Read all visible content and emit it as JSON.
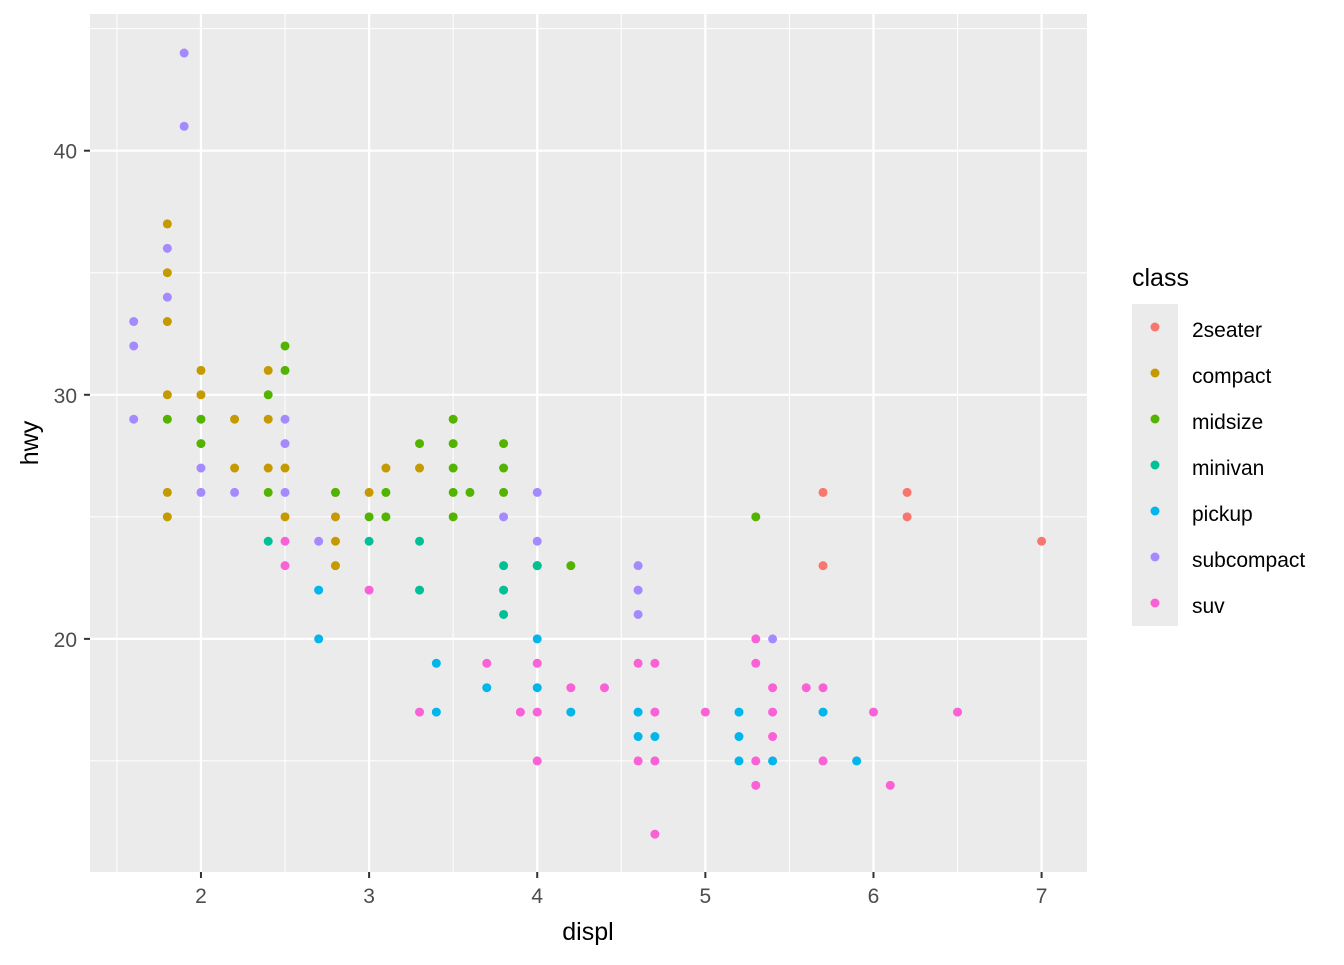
{
  "chart_data": {
    "type": "scatter",
    "xlabel": "displ",
    "ylabel": "hwy",
    "xlim": [
      1.34,
      7.27
    ],
    "ylim": [
      10.45,
      45.6
    ],
    "xticks": [
      2,
      3,
      4,
      5,
      6,
      7
    ],
    "yticks": [
      20,
      30,
      40
    ],
    "grid": true,
    "legend": {
      "title": "class",
      "placement": "right"
    },
    "series": [
      {
        "name": "2seater",
        "color": "#F8766D",
        "points": [
          [
            5.7,
            26
          ],
          [
            6.2,
            26
          ],
          [
            6.2,
            25
          ],
          [
            5.7,
            23
          ],
          [
            7.0,
            24
          ]
        ]
      },
      {
        "name": "compact",
        "color": "#C49A00",
        "points": [
          [
            1.8,
            37
          ],
          [
            1.8,
            35
          ],
          [
            1.8,
            33
          ],
          [
            1.8,
            30
          ],
          [
            1.8,
            26
          ],
          [
            1.8,
            25
          ],
          [
            2.0,
            31
          ],
          [
            2.0,
            30
          ],
          [
            2.2,
            29
          ],
          [
            2.2,
            27
          ],
          [
            2.4,
            31
          ],
          [
            2.4,
            29
          ],
          [
            2.4,
            27
          ],
          [
            2.5,
            27
          ],
          [
            2.5,
            25
          ],
          [
            2.8,
            26
          ],
          [
            2.8,
            25
          ],
          [
            2.8,
            24
          ],
          [
            2.8,
            23
          ],
          [
            3.0,
            26
          ],
          [
            3.1,
            27
          ],
          [
            3.3,
            27
          ]
        ]
      },
      {
        "name": "midsize",
        "color": "#53B400",
        "points": [
          [
            1.8,
            29
          ],
          [
            2.0,
            29
          ],
          [
            2.0,
            28
          ],
          [
            2.4,
            30
          ],
          [
            2.4,
            26
          ],
          [
            2.5,
            32
          ],
          [
            2.5,
            31
          ],
          [
            2.8,
            26
          ],
          [
            3.0,
            25
          ],
          [
            3.1,
            26
          ],
          [
            3.1,
            25
          ],
          [
            3.3,
            28
          ],
          [
            3.5,
            29
          ],
          [
            3.5,
            28
          ],
          [
            3.5,
            27
          ],
          [
            3.5,
            26
          ],
          [
            3.5,
            25
          ],
          [
            3.6,
            26
          ],
          [
            3.8,
            28
          ],
          [
            3.8,
            27
          ],
          [
            3.8,
            26
          ],
          [
            4.0,
            23
          ],
          [
            4.2,
            23
          ],
          [
            5.3,
            25
          ]
        ]
      },
      {
        "name": "minivan",
        "color": "#00C094",
        "points": [
          [
            2.4,
            24
          ],
          [
            3.0,
            24
          ],
          [
            3.3,
            24
          ],
          [
            3.3,
            22
          ],
          [
            3.8,
            23
          ],
          [
            3.8,
            22
          ],
          [
            3.8,
            21
          ],
          [
            4.0,
            23
          ]
        ]
      },
      {
        "name": "pickup",
        "color": "#00B6EB",
        "points": [
          [
            2.7,
            22
          ],
          [
            2.7,
            20
          ],
          [
            3.4,
            19
          ],
          [
            3.4,
            17
          ],
          [
            3.7,
            18
          ],
          [
            4.0,
            20
          ],
          [
            4.0,
            18
          ],
          [
            4.2,
            17
          ],
          [
            4.6,
            17
          ],
          [
            4.6,
            16
          ],
          [
            4.7,
            16
          ],
          [
            5.2,
            17
          ],
          [
            5.2,
            16
          ],
          [
            5.2,
            15
          ],
          [
            5.4,
            15
          ],
          [
            5.7,
            17
          ],
          [
            5.9,
            15
          ]
        ]
      },
      {
        "name": "subcompact",
        "color": "#A58AFF",
        "points": [
          [
            1.6,
            33
          ],
          [
            1.6,
            32
          ],
          [
            1.6,
            29
          ],
          [
            1.8,
            36
          ],
          [
            1.8,
            34
          ],
          [
            1.9,
            44
          ],
          [
            1.9,
            41
          ],
          [
            2.0,
            27
          ],
          [
            2.0,
            26
          ],
          [
            2.2,
            26
          ],
          [
            2.5,
            29
          ],
          [
            2.5,
            28
          ],
          [
            2.5,
            26
          ],
          [
            2.7,
            24
          ],
          [
            3.8,
            25
          ],
          [
            4.0,
            26
          ],
          [
            4.0,
            24
          ],
          [
            4.6,
            23
          ],
          [
            4.6,
            22
          ],
          [
            4.6,
            21
          ],
          [
            5.4,
            20
          ]
        ]
      },
      {
        "name": "suv",
        "color": "#FB61D7",
        "points": [
          [
            2.5,
            24
          ],
          [
            2.5,
            23
          ],
          [
            3.0,
            22
          ],
          [
            3.3,
            17
          ],
          [
            3.7,
            19
          ],
          [
            3.9,
            17
          ],
          [
            4.0,
            19
          ],
          [
            4.0,
            17
          ],
          [
            4.0,
            15
          ],
          [
            4.2,
            18
          ],
          [
            4.4,
            18
          ],
          [
            4.6,
            19
          ],
          [
            4.6,
            15
          ],
          [
            4.7,
            19
          ],
          [
            4.7,
            17
          ],
          [
            4.7,
            15
          ],
          [
            4.7,
            12
          ],
          [
            5.0,
            17
          ],
          [
            5.3,
            20
          ],
          [
            5.3,
            19
          ],
          [
            5.3,
            15
          ],
          [
            5.3,
            14
          ],
          [
            5.4,
            18
          ],
          [
            5.4,
            17
          ],
          [
            5.4,
            16
          ],
          [
            5.6,
            18
          ],
          [
            5.7,
            18
          ],
          [
            5.7,
            15
          ],
          [
            6.0,
            17
          ],
          [
            6.1,
            14
          ],
          [
            6.5,
            17
          ]
        ]
      }
    ]
  }
}
